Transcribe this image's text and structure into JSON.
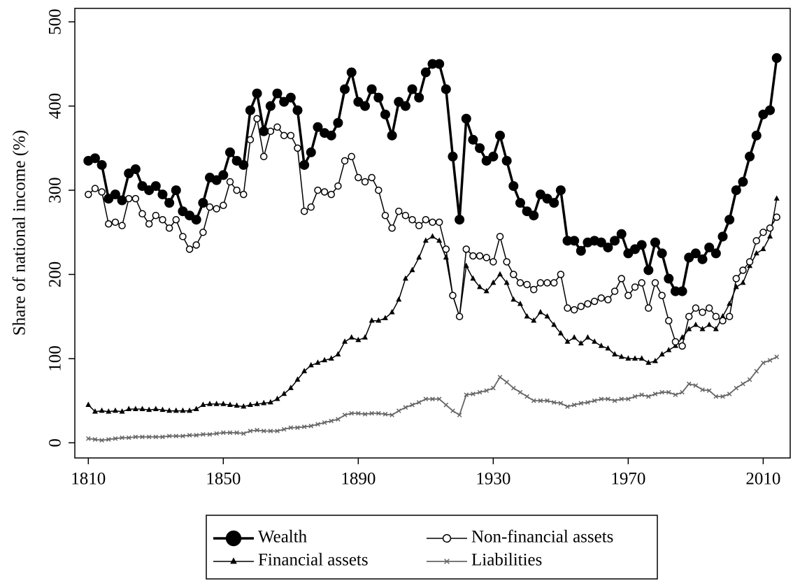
{
  "chart_data": {
    "type": "line",
    "ylabel": "Share of national income (%)",
    "x": [
      1810,
      1812,
      1814,
      1816,
      1818,
      1820,
      1822,
      1824,
      1826,
      1828,
      1830,
      1832,
      1834,
      1836,
      1838,
      1840,
      1842,
      1844,
      1846,
      1848,
      1850,
      1852,
      1854,
      1856,
      1858,
      1860,
      1862,
      1864,
      1866,
      1868,
      1870,
      1872,
      1874,
      1876,
      1878,
      1880,
      1882,
      1884,
      1886,
      1888,
      1890,
      1892,
      1894,
      1896,
      1898,
      1900,
      1902,
      1904,
      1906,
      1908,
      1910,
      1912,
      1914,
      1916,
      1918,
      1920,
      1922,
      1924,
      1926,
      1928,
      1930,
      1932,
      1934,
      1936,
      1938,
      1940,
      1942,
      1944,
      1946,
      1948,
      1950,
      1952,
      1954,
      1956,
      1958,
      1960,
      1962,
      1964,
      1966,
      1968,
      1970,
      1972,
      1974,
      1976,
      1978,
      1980,
      1982,
      1984,
      1986,
      1988,
      1990,
      1992,
      1994,
      1996,
      1998,
      2000,
      2002,
      2004,
      2006,
      2008,
      2010,
      2012,
      2014
    ],
    "series": [
      {
        "name": "Wealth",
        "color": "#000000",
        "marker": "filled-circle",
        "values": [
          335,
          338,
          330,
          290,
          295,
          288,
          320,
          325,
          305,
          300,
          305,
          295,
          285,
          300,
          275,
          270,
          265,
          285,
          315,
          312,
          318,
          345,
          335,
          330,
          395,
          415,
          370,
          400,
          415,
          405,
          410,
          395,
          330,
          345,
          375,
          368,
          365,
          380,
          420,
          440,
          405,
          400,
          420,
          410,
          390,
          365,
          405,
          400,
          420,
          410,
          440,
          450,
          450,
          420,
          340,
          265,
          385,
          360,
          350,
          335,
          340,
          365,
          335,
          305,
          285,
          275,
          270,
          295,
          290,
          285,
          300,
          240,
          240,
          228,
          238,
          240,
          238,
          232,
          240,
          248,
          225,
          230,
          235,
          205,
          238,
          225,
          195,
          180,
          180,
          220,
          225,
          218,
          232,
          225,
          245,
          265,
          300,
          310,
          340,
          365,
          390,
          395,
          457
        ]
      },
      {
        "name": "Non-financial assets",
        "color": "#000000",
        "marker": "open-circle",
        "values": [
          295,
          302,
          298,
          260,
          262,
          258,
          290,
          290,
          272,
          260,
          270,
          265,
          255,
          265,
          245,
          230,
          235,
          250,
          280,
          278,
          282,
          310,
          300,
          295,
          360,
          385,
          340,
          370,
          375,
          365,
          365,
          350,
          275,
          280,
          300,
          298,
          295,
          305,
          335,
          340,
          315,
          310,
          315,
          300,
          270,
          255,
          275,
          270,
          265,
          258,
          265,
          262,
          262,
          230,
          175,
          150,
          230,
          222,
          222,
          220,
          215,
          245,
          215,
          200,
          190,
          188,
          182,
          190,
          190,
          190,
          200,
          160,
          158,
          162,
          165,
          168,
          172,
          170,
          180,
          195,
          175,
          185,
          190,
          160,
          190,
          175,
          145,
          120,
          115,
          150,
          160,
          155,
          160,
          150,
          145,
          150,
          195,
          205,
          215,
          240,
          250,
          255,
          268
        ]
      },
      {
        "name": "Financial assets",
        "color": "#000000",
        "marker": "triangle",
        "values": [
          45,
          37,
          38,
          37,
          38,
          37,
          40,
          40,
          40,
          39,
          40,
          39,
          38,
          38,
          38,
          38,
          40,
          45,
          46,
          46,
          46,
          45,
          44,
          43,
          45,
          46,
          47,
          48,
          52,
          58,
          65,
          75,
          85,
          92,
          95,
          98,
          100,
          105,
          120,
          125,
          122,
          125,
          145,
          145,
          148,
          155,
          170,
          195,
          205,
          220,
          240,
          245,
          240,
          220,
          175,
          150,
          210,
          195,
          185,
          180,
          190,
          200,
          190,
          170,
          165,
          150,
          145,
          155,
          150,
          140,
          130,
          120,
          125,
          118,
          125,
          120,
          115,
          112,
          105,
          102,
          100,
          100,
          100,
          95,
          97,
          105,
          110,
          115,
          125,
          135,
          140,
          135,
          140,
          135,
          150,
          165,
          185,
          190,
          210,
          225,
          230,
          245,
          290
        ]
      },
      {
        "name": "Liabilities",
        "color": "#666666",
        "marker": "cross",
        "values": [
          5,
          4,
          3,
          4,
          5,
          6,
          6,
          7,
          7,
          7,
          7,
          7,
          8,
          8,
          8,
          9,
          9,
          10,
          10,
          11,
          12,
          12,
          12,
          11,
          14,
          15,
          14,
          14,
          14,
          16,
          18,
          18,
          19,
          20,
          22,
          24,
          26,
          28,
          33,
          35,
          35,
          34,
          35,
          35,
          34,
          33,
          38,
          42,
          45,
          48,
          52,
          52,
          52,
          45,
          38,
          33,
          57,
          58,
          60,
          62,
          65,
          78,
          72,
          65,
          60,
          55,
          50,
          50,
          50,
          48,
          47,
          43,
          45,
          47,
          48,
          50,
          52,
          52,
          50,
          52,
          52,
          55,
          57,
          55,
          58,
          60,
          60,
          57,
          60,
          70,
          68,
          63,
          62,
          55,
          55,
          58,
          65,
          70,
          75,
          85,
          95,
          98,
          102
        ]
      }
    ],
    "xlim": [
      1806,
      2018
    ],
    "ylim": [
      -18,
      516
    ],
    "xticks": [
      1810,
      1850,
      1890,
      1930,
      1970,
      2010
    ],
    "yticks": [
      0,
      100,
      200,
      300,
      400,
      500
    ],
    "grid": false,
    "legend": "bottom"
  }
}
